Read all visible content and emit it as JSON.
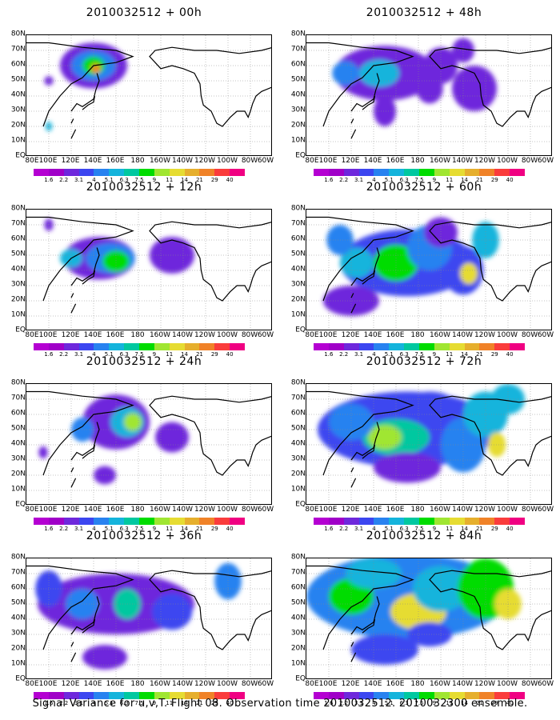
{
  "lat_labels": [
    "80N",
    "70N",
    "60N",
    "50N",
    "40N",
    "30N",
    "20N",
    "10N",
    "EQ"
  ],
  "lon_labels": [
    "80E",
    "100E",
    "120E",
    "140E",
    "160E",
    "180",
    "160W",
    "140W",
    "120W",
    "100W",
    "80W",
    "60W"
  ],
  "legend_values": [
    "1.6",
    "2.2",
    "3.1",
    "4",
    "5.1",
    "6.3",
    "7.5",
    "9",
    "11",
    "14",
    "21",
    "29",
    "40"
  ],
  "legend_colors": [
    "#a000c8",
    "#6e28dc",
    "#3c46f0",
    "#2882f0",
    "#14b4dc",
    "#00c8a0",
    "#00dc00",
    "#a0e632",
    "#e6dc32",
    "#e6af2d",
    "#f08228",
    "#fa3c3c",
    "#f00082"
  ],
  "panels": [
    {
      "title": "2010032512 + 00h",
      "blobs": [
        [
          140,
          60,
          30,
          15,
          1
        ],
        [
          140,
          60,
          20,
          10,
          3
        ],
        [
          140,
          60,
          10,
          6,
          6
        ],
        [
          142,
          58,
          4,
          3,
          10
        ],
        [
          100,
          50,
          4,
          3,
          1
        ],
        [
          100,
          20,
          3,
          3,
          4
        ]
      ]
    },
    {
      "title": "2010032512 + 48h",
      "blobs": [
        [
          150,
          55,
          45,
          18,
          1
        ],
        [
          115,
          55,
          12,
          8,
          3
        ],
        [
          145,
          55,
          18,
          9,
          4
        ],
        [
          200,
          60,
          15,
          12,
          1
        ],
        [
          190,
          45,
          12,
          10,
          1
        ],
        [
          230,
          45,
          20,
          15,
          1
        ],
        [
          150,
          30,
          10,
          10,
          1
        ],
        [
          220,
          70,
          10,
          8,
          1
        ]
      ]
    },
    {
      "title": "2010032512 + 12h",
      "blobs": [
        [
          145,
          48,
          32,
          14,
          1
        ],
        [
          155,
          48,
          22,
          10,
          3
        ],
        [
          160,
          46,
          12,
          7,
          6
        ],
        [
          120,
          48,
          10,
          6,
          4
        ],
        [
          100,
          70,
          4,
          4,
          1
        ],
        [
          210,
          50,
          20,
          12,
          1
        ]
      ]
    },
    {
      "title": "2010032512 + 60h",
      "blobs": [
        [
          170,
          45,
          60,
          22,
          2
        ],
        [
          125,
          45,
          15,
          10,
          4
        ],
        [
          160,
          45,
          20,
          12,
          6
        ],
        [
          220,
          40,
          18,
          16,
          2
        ],
        [
          225,
          38,
          8,
          7,
          8
        ],
        [
          190,
          55,
          20,
          15,
          3
        ],
        [
          110,
          60,
          12,
          10,
          3
        ],
        [
          200,
          65,
          15,
          10,
          1
        ],
        [
          120,
          20,
          25,
          10,
          1
        ],
        [
          240,
          60,
          12,
          12,
          4
        ]
      ]
    },
    {
      "title": "2010032512 + 24h",
      "blobs": [
        [
          160,
          55,
          30,
          18,
          1
        ],
        [
          170,
          55,
          15,
          10,
          4
        ],
        [
          175,
          55,
          8,
          6,
          7
        ],
        [
          130,
          50,
          10,
          8,
          3
        ],
        [
          210,
          45,
          15,
          10,
          1
        ],
        [
          150,
          20,
          10,
          6,
          1
        ],
        [
          95,
          35,
          4,
          4,
          1
        ]
      ]
    },
    {
      "title": "2010032512 + 72h",
      "blobs": [
        [
          170,
          50,
          80,
          25,
          2
        ],
        [
          160,
          45,
          30,
          12,
          5
        ],
        [
          150,
          45,
          15,
          8,
          7
        ],
        [
          120,
          55,
          20,
          12,
          3
        ],
        [
          220,
          40,
          20,
          18,
          3
        ],
        [
          240,
          60,
          20,
          15,
          4
        ],
        [
          250,
          40,
          8,
          8,
          8
        ],
        [
          190,
          65,
          25,
          10,
          2
        ],
        [
          170,
          25,
          30,
          10,
          1
        ],
        [
          260,
          70,
          15,
          10,
          4
        ]
      ]
    },
    {
      "title": "2010032512 + 36h",
      "blobs": [
        [
          160,
          50,
          70,
          20,
          1
        ],
        [
          130,
          50,
          15,
          10,
          3
        ],
        [
          170,
          50,
          12,
          10,
          5
        ],
        [
          210,
          45,
          18,
          12,
          2
        ],
        [
          100,
          60,
          12,
          12,
          2
        ],
        [
          260,
          65,
          12,
          12,
          3
        ],
        [
          150,
          15,
          20,
          8,
          1
        ]
      ]
    },
    {
      "title": "2010032512 + 84h",
      "blobs": [
        [
          170,
          55,
          90,
          28,
          3
        ],
        [
          120,
          55,
          20,
          12,
          6
        ],
        [
          180,
          45,
          25,
          12,
          8
        ],
        [
          200,
          60,
          25,
          15,
          4
        ],
        [
          240,
          60,
          25,
          20,
          6
        ],
        [
          260,
          50,
          12,
          10,
          8
        ],
        [
          150,
          20,
          30,
          10,
          2
        ],
        [
          190,
          30,
          20,
          8,
          2
        ],
        [
          140,
          70,
          25,
          10,
          4
        ]
      ]
    }
  ],
  "caption": "Signal Variance for u,v,T. Flight 08. Observation time 2010032512. 2010032300 ensemble."
}
